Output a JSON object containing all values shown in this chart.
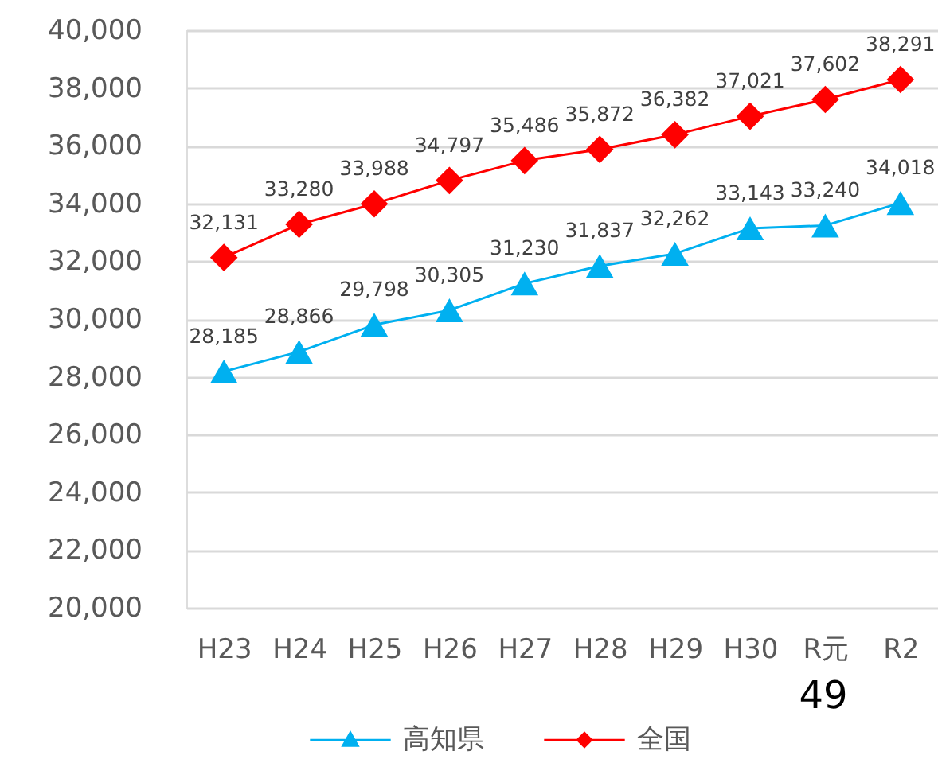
{
  "chart_data": {
    "type": "line",
    "categories": [
      "H23",
      "H24",
      "H25",
      "H26",
      "H27",
      "H28",
      "H29",
      "H30",
      "R元",
      "R2"
    ],
    "series": [
      {
        "name": "高知県",
        "color": "#00b0f0",
        "marker": "triangle",
        "values": [
          28185,
          28866,
          29798,
          30305,
          31230,
          31837,
          32262,
          33143,
          33240,
          34018
        ],
        "value_labels": [
          "28,185",
          "28,866",
          "29,798",
          "30,305",
          "31,230",
          "31,837",
          "32,262",
          "33,143",
          "33,240",
          "34,018"
        ]
      },
      {
        "name": "全国",
        "color": "#ff0000",
        "marker": "diamond",
        "values": [
          32131,
          33280,
          33988,
          34797,
          35486,
          35872,
          36382,
          37021,
          37602,
          38291
        ],
        "value_labels": [
          "32,131",
          "33,280",
          "33,988",
          "34,797",
          "35,486",
          "35,872",
          "36,382",
          "37,021",
          "37,602",
          "38,291"
        ]
      }
    ],
    "ylim": [
      20000,
      40000
    ],
    "yticks": [
      {
        "value": 20000,
        "label": "20,000"
      },
      {
        "value": 22000,
        "label": "22,000"
      },
      {
        "value": 24000,
        "label": "24,000"
      },
      {
        "value": 26000,
        "label": "26,000"
      },
      {
        "value": 28000,
        "label": "28,000"
      },
      {
        "value": 30000,
        "label": "30,000"
      },
      {
        "value": 32000,
        "label": "32,000"
      },
      {
        "value": 34000,
        "label": "34,000"
      },
      {
        "value": 36000,
        "label": "36,000"
      },
      {
        "value": 38000,
        "label": "38,000"
      },
      {
        "value": 40000,
        "label": "40,000"
      }
    ],
    "grid": "y",
    "legend": "bottom",
    "line_style": "solid",
    "annotations": [
      "49"
    ]
  }
}
